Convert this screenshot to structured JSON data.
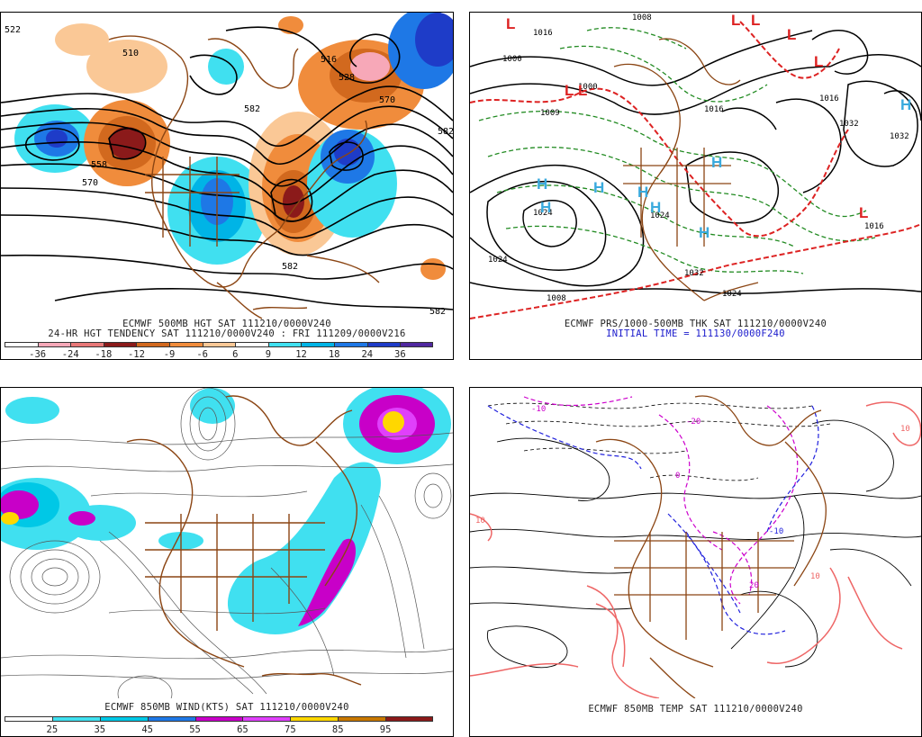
{
  "panels": {
    "p1": {
      "caption1": "ECMWF 500MB HGT SAT 111210/0000V240",
      "caption2": "24-HR HGT TENDENCY SAT 111210/0000V240 : FRI 111209/0000V216",
      "legend_colors": [
        "#ffffff",
        "#f7a8b8",
        "#e87878",
        "#8b1a1a",
        "#d2691e",
        "#f08c3c",
        "#fac896",
        "#ffffff",
        "#40e0f0",
        "#00b4e6",
        "#1e78e6",
        "#1e3cc8",
        "#5028a0"
      ],
      "legend_labels": [
        "-36",
        "-24",
        "-18",
        "-12",
        "-9",
        "-6",
        "6",
        "9",
        "12",
        "18",
        "24",
        "36"
      ],
      "contour_labels": [
        "522",
        "510",
        "558",
        "570",
        "582",
        "516",
        "528",
        "570",
        "582",
        "582",
        "582"
      ]
    },
    "p2": {
      "caption1": "ECMWF PRS/1000-500MB THK SAT 111210/0000V240",
      "caption2": "INITIAL TIME = 111130/0000F240",
      "pressure_labels": [
        "1008",
        "1016",
        "1000",
        "1009",
        "1024",
        "1016",
        "1000",
        "1024",
        "1024",
        "1032",
        "1032",
        "1016",
        "1024",
        "1032",
        "1016",
        "1008"
      ],
      "high_label": "H",
      "low_label": "L"
    },
    "p3": {
      "caption1": "ECMWF 850MB WIND(KTS) SAT 111210/0000V240",
      "legend_colors": [
        "#ffffff",
        "#40e0f0",
        "#00c8e6",
        "#1e78e6",
        "#c800c8",
        "#e040fb",
        "#ffd700",
        "#c87800",
        "#8b1a1a"
      ],
      "legend_labels": [
        "25",
        "35",
        "45",
        "55",
        "65",
        "75",
        "85",
        "95"
      ]
    },
    "p4": {
      "caption1": "ECMWF 850MB TEMP SAT 111210/0000V240",
      "temp_labels": [
        "-10",
        "0",
        "10",
        "20",
        "-20",
        "10",
        "-10",
        "10"
      ]
    }
  },
  "colors": {
    "coast": "#8b4513",
    "contour": "#000000",
    "thickness_green": "#228b22",
    "thickness_red": "#dd2222",
    "high": "#3aaadd",
    "low": "#dd2222"
  }
}
